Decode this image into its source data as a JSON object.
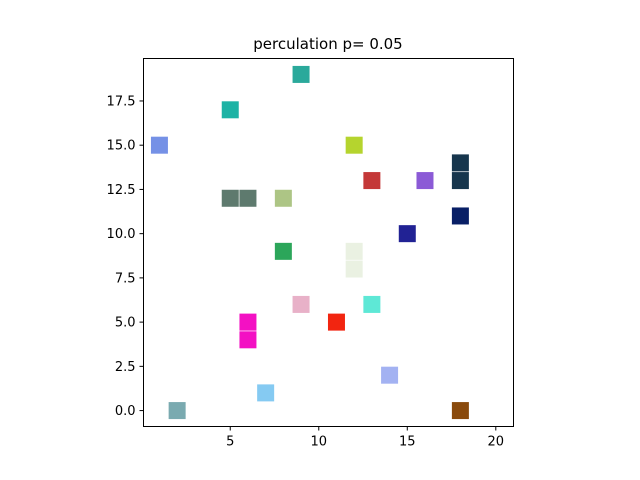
{
  "chart_data": {
    "type": "scatter",
    "title": "perculation p= 0.05",
    "xlabel": "",
    "ylabel": "",
    "xlim": [
      0.1,
      21.0
    ],
    "ylim": [
      -0.9,
      19.9
    ],
    "xticks": [
      5,
      10,
      15,
      20
    ],
    "xtick_labels": [
      "5",
      "10",
      "15",
      "20"
    ],
    "yticks": [
      0,
      2.5,
      5,
      7.5,
      10,
      12.5,
      15,
      17.5
    ],
    "ytick_labels": [
      "0.0",
      "2.5",
      "5.0",
      "7.5",
      "10.0",
      "12.5",
      "15.0",
      "17.5"
    ],
    "grid": false,
    "marker": "square",
    "points": [
      {
        "x": 9,
        "y": 19,
        "color": "#2aa99b"
      },
      {
        "x": 5,
        "y": 17,
        "color": "#1db3a5"
      },
      {
        "x": 1,
        "y": 15,
        "color": "#7591e6"
      },
      {
        "x": 12,
        "y": 15,
        "color": "#b5d42e"
      },
      {
        "x": 18,
        "y": 14,
        "color": "#17364d"
      },
      {
        "x": 18,
        "y": 13,
        "color": "#17364d"
      },
      {
        "x": 13,
        "y": 13,
        "color": "#c43838"
      },
      {
        "x": 16,
        "y": 13,
        "color": "#8b5ad6"
      },
      {
        "x": 5,
        "y": 12,
        "color": "#5e7a6e"
      },
      {
        "x": 6,
        "y": 12,
        "color": "#5e7a6e"
      },
      {
        "x": 8,
        "y": 12,
        "color": "#adc585"
      },
      {
        "x": 18,
        "y": 11,
        "color": "#081f66"
      },
      {
        "x": 15,
        "y": 10,
        "color": "#212294"
      },
      {
        "x": 8,
        "y": 9,
        "color": "#2ca65a"
      },
      {
        "x": 12,
        "y": 9,
        "color": "#eaf1e2"
      },
      {
        "x": 12,
        "y": 8,
        "color": "#eaf1e2"
      },
      {
        "x": 9,
        "y": 6,
        "color": "#e8b1c8"
      },
      {
        "x": 13,
        "y": 6,
        "color": "#5ee8d6"
      },
      {
        "x": 6,
        "y": 5,
        "color": "#f311c3"
      },
      {
        "x": 6,
        "y": 4,
        "color": "#f311c3"
      },
      {
        "x": 11,
        "y": 5,
        "color": "#f22510"
      },
      {
        "x": 14,
        "y": 2,
        "color": "#a3b2f2"
      },
      {
        "x": 7,
        "y": 1,
        "color": "#85caf2"
      },
      {
        "x": 2,
        "y": 0,
        "color": "#7aaab0"
      },
      {
        "x": 18,
        "y": 0,
        "color": "#8a4a0c"
      }
    ]
  }
}
